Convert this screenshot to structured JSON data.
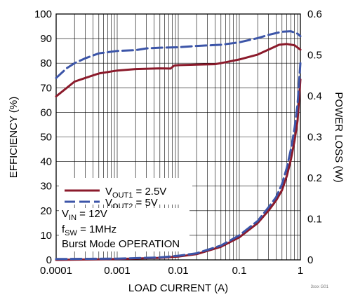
{
  "chart_data": {
    "type": "line",
    "title": "",
    "xlabel": "LOAD CURRENT (A)",
    "ylabel": "EFFICIENCY (%)",
    "y2label": "POWER LOSS (W)",
    "x_scale": "log",
    "xlim": [
      0.0001,
      1
    ],
    "ylim": [
      0,
      100
    ],
    "y2lim": [
      0,
      0.6
    ],
    "x_ticks": [
      "0.0001",
      "0.001",
      "0.01",
      "0.1",
      "1"
    ],
    "y_ticks": [
      "0",
      "10",
      "20",
      "30",
      "40",
      "50",
      "60",
      "70",
      "80",
      "90",
      "100"
    ],
    "y2_ticks": [
      "0",
      "0.1",
      "0.2",
      "0.3",
      "0.4",
      "0.5",
      "0.6"
    ],
    "grid": true,
    "legend_position": "lower-left",
    "series": [
      {
        "name": "VOUT1 = 2.5V",
        "kind": "efficiency",
        "axis": "left",
        "color": "#8b1a2b",
        "style": "solid",
        "x": [
          0.0001,
          0.00015,
          0.0002,
          0.0003,
          0.0005,
          0.001,
          0.002,
          0.005,
          0.0075,
          0.0085,
          0.01,
          0.02,
          0.04,
          0.06,
          0.1,
          0.2,
          0.3,
          0.45,
          0.6,
          0.8,
          1.0
        ],
        "values": [
          66.5,
          70,
          72.5,
          74,
          75.8,
          77,
          77.6,
          77.9,
          77.8,
          79,
          79.2,
          79.4,
          79.6,
          80.4,
          81.5,
          83.5,
          85.5,
          87.5,
          87.8,
          87.3,
          85.5
        ]
      },
      {
        "name": "VOUT2 = 5V",
        "kind": "efficiency",
        "axis": "left",
        "color": "#3c55a8",
        "style": "dashed",
        "x": [
          0.0001,
          0.00015,
          0.0002,
          0.0003,
          0.0005,
          0.001,
          0.002,
          0.003,
          0.005,
          0.01,
          0.02,
          0.05,
          0.1,
          0.2,
          0.3,
          0.5,
          0.7,
          0.9,
          1.0
        ],
        "values": [
          74,
          78,
          80,
          82,
          84,
          85,
          85.3,
          86,
          86.3,
          86.5,
          87,
          87.5,
          88.5,
          90.2,
          91.5,
          92.8,
          93,
          92,
          91
        ]
      },
      {
        "name": "VOUT1 = 2.5V",
        "kind": "power_loss",
        "axis": "right",
        "color": "#8b1a2b",
        "style": "solid",
        "x": [
          0.0001,
          0.001,
          0.005,
          0.01,
          0.02,
          0.05,
          0.1,
          0.2,
          0.3,
          0.4,
          0.5,
          0.6,
          0.7,
          0.8,
          0.9,
          1.0
        ],
        "values": [
          0,
          0.002,
          0.005,
          0.008,
          0.014,
          0.032,
          0.055,
          0.09,
          0.12,
          0.145,
          0.17,
          0.205,
          0.245,
          0.29,
          0.34,
          0.44
        ]
      },
      {
        "name": "VOUT2 = 5V",
        "kind": "power_loss",
        "axis": "right",
        "color": "#3c55a8",
        "style": "dashed",
        "x": [
          0.0001,
          0.001,
          0.005,
          0.01,
          0.02,
          0.05,
          0.1,
          0.2,
          0.3,
          0.4,
          0.5,
          0.6,
          0.7,
          0.8,
          0.9,
          1.0
        ],
        "values": [
          0.002,
          0.003,
          0.006,
          0.01,
          0.016,
          0.035,
          0.06,
          0.095,
          0.128,
          0.153,
          0.185,
          0.225,
          0.27,
          0.32,
          0.38,
          0.48
        ]
      }
    ],
    "annotations": [
      "VIN = 12V",
      "fSW = 1MHz",
      "Burst Mode OPERATION"
    ]
  },
  "legend": {
    "items": [
      {
        "main": "V",
        "sub": "OUT1",
        "rest": " = 2.5V",
        "color": "#8b1a2b"
      },
      {
        "main": "V",
        "sub": "OUT2",
        "rest": " = 5V",
        "color": "#3c55a8"
      }
    ]
  },
  "annotations": {
    "vin": {
      "main": "V",
      "sub": "IN",
      "rest": " = 12V"
    },
    "fsw": {
      "main": "f",
      "sub": "SW",
      "rest": " = 1MHz"
    },
    "burst": "Burst Mode OPERATION"
  },
  "corner_code": "3xxx G01"
}
